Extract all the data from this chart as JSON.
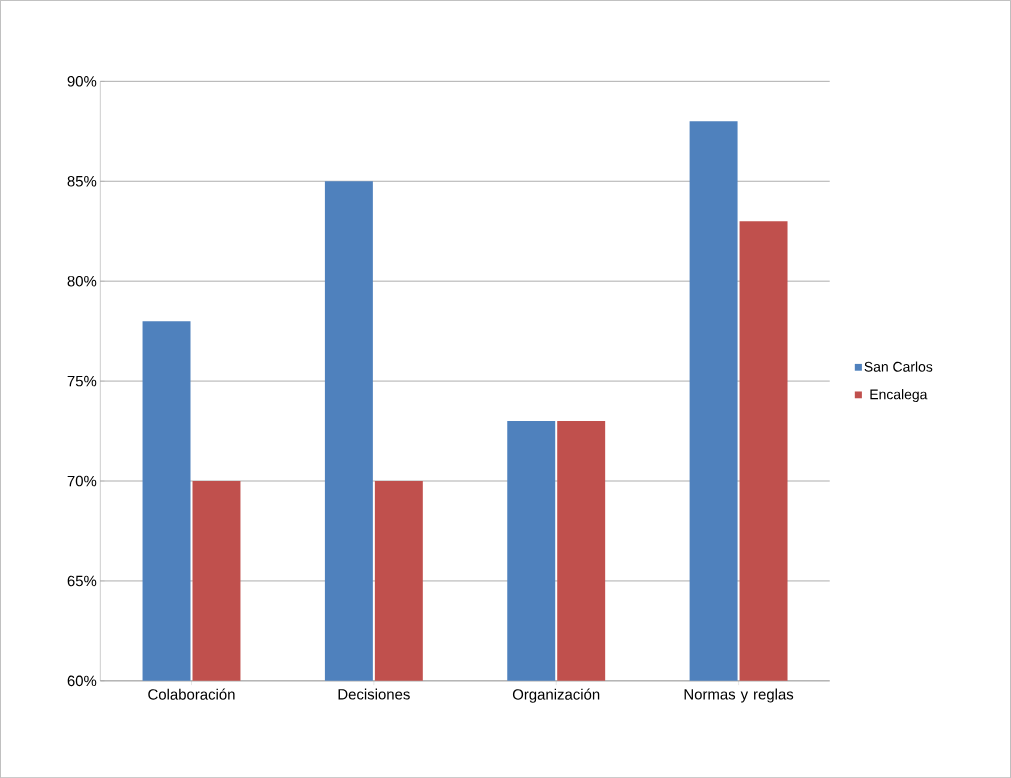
{
  "chart_data": {
    "type": "bar",
    "categories": [
      "Colaboración",
      "Decisiones",
      "Organización",
      "Normas y reglas"
    ],
    "series": [
      {
        "name": "San Carlos",
        "color": "#4f81bd",
        "values": [
          78,
          85,
          73,
          88
        ]
      },
      {
        "name": "Encalega",
        "color": "#c0504d",
        "values": [
          70,
          70,
          73,
          83
        ]
      }
    ],
    "ylim": [
      60,
      90
    ],
    "yticks": [
      {
        "value": 60,
        "label": "60%"
      },
      {
        "value": 65,
        "label": "65%"
      },
      {
        "value": 70,
        "label": "70%"
      },
      {
        "value": 75,
        "label": "75%"
      },
      {
        "value": 80,
        "label": "80%"
      },
      {
        "value": 85,
        "label": "85%"
      },
      {
        "value": 90,
        "label": "90%"
      }
    ],
    "grid": "y",
    "legend": "right"
  }
}
